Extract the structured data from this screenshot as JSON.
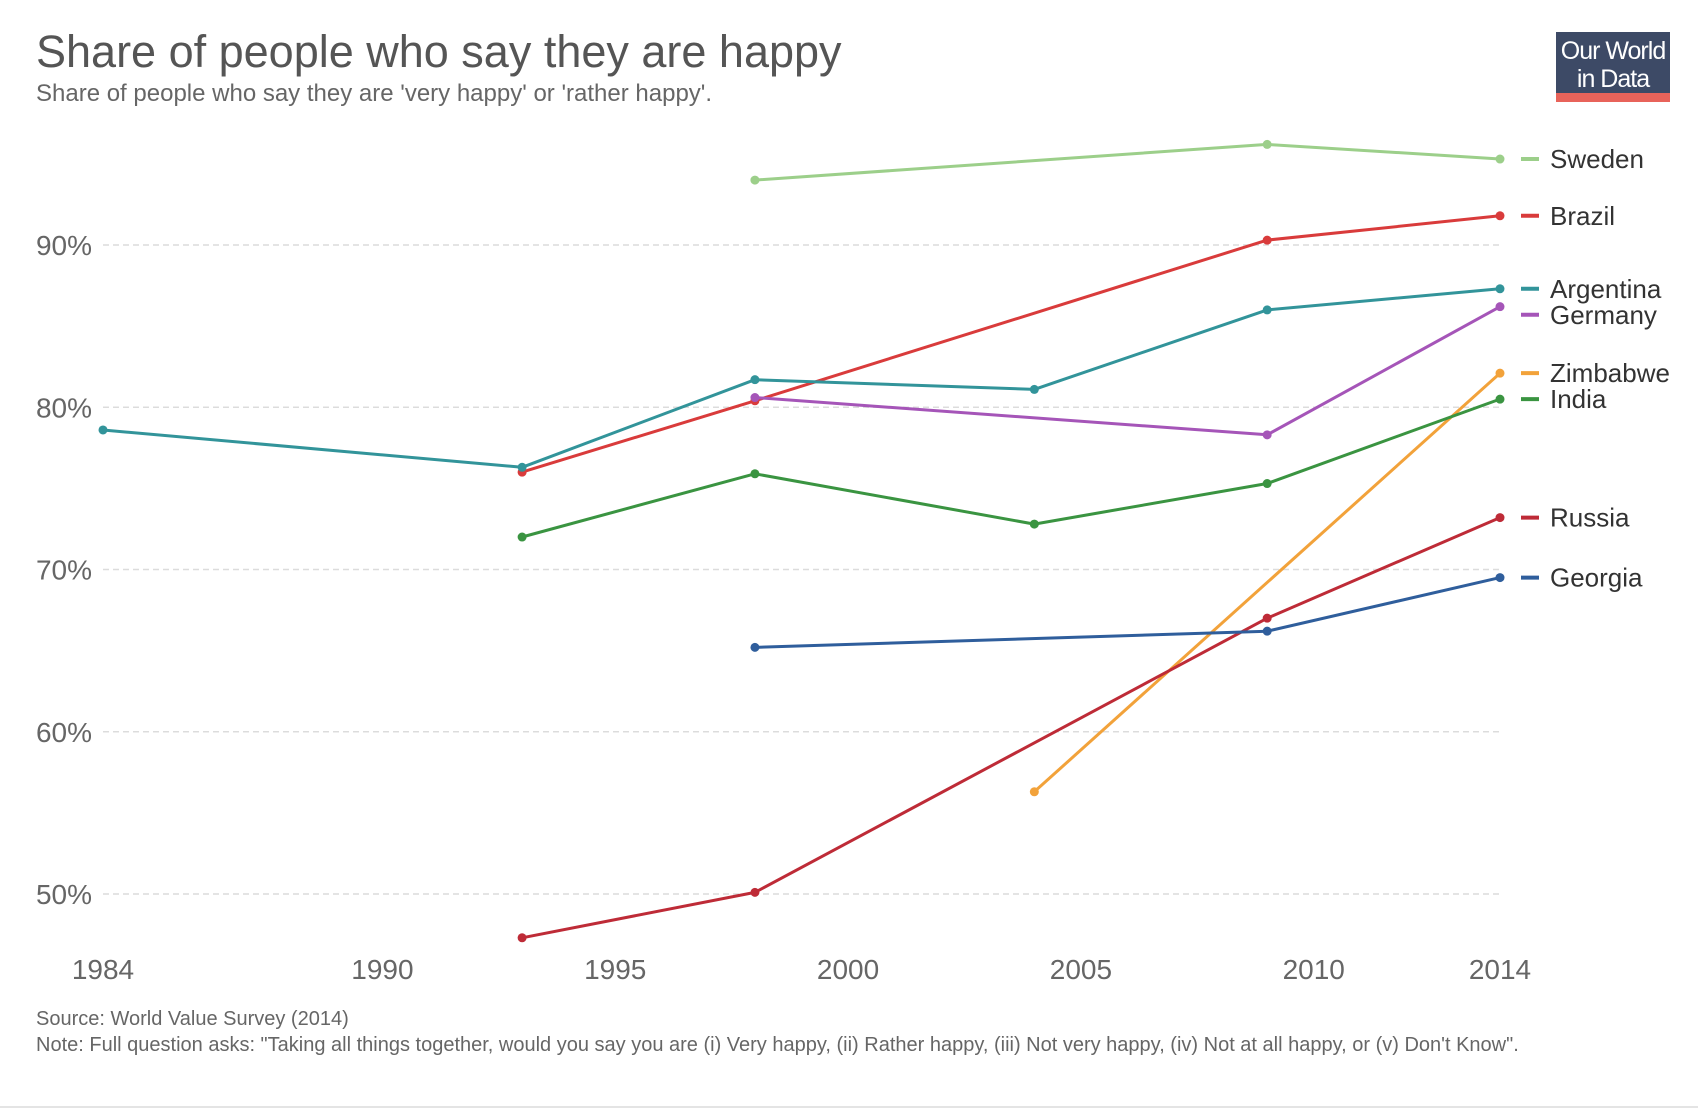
{
  "header": {
    "title": "Share of people who say they are happy",
    "subtitle": "Share of people who say they are 'very happy' or 'rather happy'."
  },
  "logo": {
    "line1": "Our World",
    "line2": "in Data",
    "bg_color": "#3d4a66",
    "accent_color": "#e8635a"
  },
  "footer": {
    "source": "Source: World Value Survey (2014)",
    "note": "Note: Full question asks: \"Taking all things together, would you say you are (i) Very happy, (ii) Rather happy, (iii) Not very happy, (iv) Not at all happy, or (v) Don't Know\"."
  },
  "chart_data": {
    "type": "line",
    "title": "Share of people who say they are happy",
    "subtitle": "Share of people who say they are 'very happy' or 'rather happy'.",
    "xlabel": "",
    "ylabel": "",
    "xlim": [
      1984,
      2014
    ],
    "ylim": [
      46,
      98
    ],
    "x_ticks": [
      1984,
      1990,
      1995,
      2000,
      2005,
      2010,
      2014
    ],
    "y_ticks": [
      50,
      60,
      70,
      80,
      90
    ],
    "y_tick_labels": [
      "50%",
      "60%",
      "70%",
      "80%",
      "90%"
    ],
    "grid": "horizontal dashed",
    "legend": "right, labels at line ends",
    "series": [
      {
        "name": "Sweden",
        "color": "#9ccf8a",
        "points": [
          [
            1998,
            94.0
          ],
          [
            2009,
            96.2
          ],
          [
            2014,
            95.3
          ]
        ]
      },
      {
        "name": "Brazil",
        "color": "#d93b3b",
        "points": [
          [
            1993,
            76.0
          ],
          [
            1998,
            80.4
          ],
          [
            2009,
            90.3
          ],
          [
            2014,
            91.8
          ]
        ]
      },
      {
        "name": "Argentina",
        "color": "#32949a",
        "points": [
          [
            1984,
            78.6
          ],
          [
            1993,
            76.3
          ],
          [
            1998,
            81.7
          ],
          [
            2004,
            81.1
          ],
          [
            2009,
            86.0
          ],
          [
            2014,
            87.3
          ]
        ]
      },
      {
        "name": "Germany",
        "color": "#a555b8",
        "points": [
          [
            1998,
            80.6
          ],
          [
            2009,
            78.3
          ],
          [
            2014,
            86.2
          ]
        ]
      },
      {
        "name": "Zimbabwe",
        "color": "#f2a23a",
        "points": [
          [
            2004,
            56.3
          ],
          [
            2014,
            82.1
          ]
        ]
      },
      {
        "name": "India",
        "color": "#3a9441",
        "points": [
          [
            1993,
            72.0
          ],
          [
            1998,
            75.9
          ],
          [
            2004,
            72.8
          ],
          [
            2009,
            75.3
          ],
          [
            2014,
            80.5
          ]
        ]
      },
      {
        "name": "Russia",
        "color": "#be2b37",
        "points": [
          [
            1993,
            47.3
          ],
          [
            1998,
            50.1
          ],
          [
            2009,
            67.0
          ],
          [
            2014,
            73.2
          ]
        ]
      },
      {
        "name": "Georgia",
        "color": "#2f5e9c",
        "points": [
          [
            1998,
            65.2
          ],
          [
            2009,
            66.2
          ],
          [
            2014,
            69.5
          ]
        ]
      }
    ]
  }
}
